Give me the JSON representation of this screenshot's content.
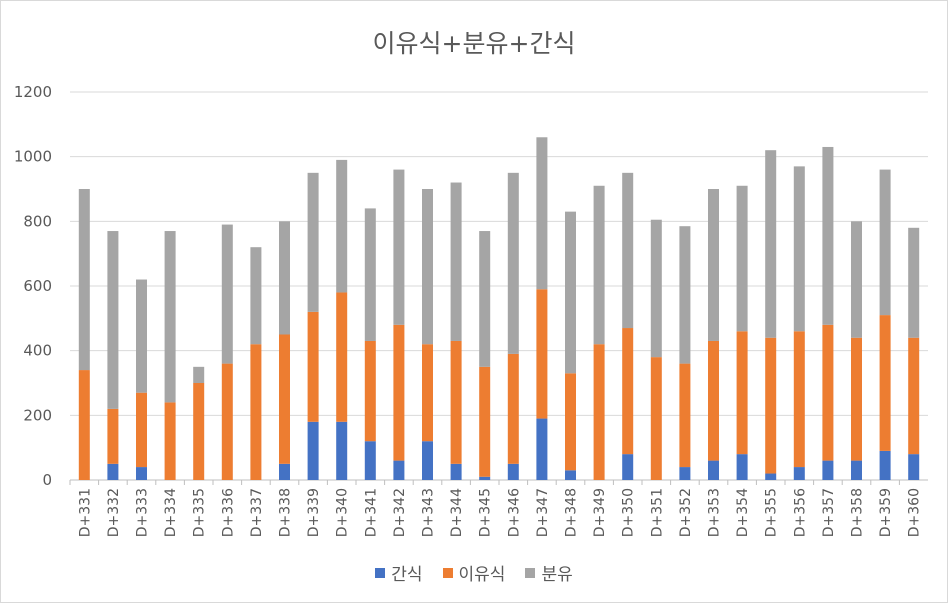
{
  "chart_data": {
    "type": "bar",
    "stacked": true,
    "title": "이유식+분유+간식",
    "xlabel": "",
    "ylabel": "",
    "ylim": [
      0,
      1200
    ],
    "yticks": [
      0,
      200,
      400,
      600,
      800,
      1000,
      1200
    ],
    "grid": true,
    "legend_position": "bottom",
    "categories": [
      "D+331",
      "D+332",
      "D+333",
      "D+334",
      "D+335",
      "D+336",
      "D+337",
      "D+338",
      "D+339",
      "D+340",
      "D+341",
      "D+342",
      "D+343",
      "D+344",
      "D+345",
      "D+346",
      "D+347",
      "D+348",
      "D+349",
      "D+350",
      "D+351",
      "D+352",
      "D+353",
      "D+354",
      "D+355",
      "D+356",
      "D+357",
      "D+358",
      "D+359",
      "D+360"
    ],
    "series": [
      {
        "name": "간식",
        "color": "#4472C4",
        "values": [
          0,
          50,
          40,
          0,
          0,
          0,
          0,
          50,
          180,
          180,
          120,
          60,
          120,
          50,
          10,
          50,
          190,
          30,
          0,
          80,
          0,
          40,
          60,
          80,
          20,
          40,
          60,
          60,
          90,
          80
        ]
      },
      {
        "name": "이유식",
        "color": "#ED7D31",
        "values": [
          340,
          170,
          230,
          240,
          300,
          360,
          420,
          400,
          340,
          400,
          310,
          420,
          300,
          380,
          340,
          340,
          400,
          300,
          420,
          390,
          380,
          320,
          370,
          380,
          420,
          420,
          420,
          380,
          420,
          360
        ]
      },
      {
        "name": "분유",
        "color": "#A5A5A5",
        "values": [
          560,
          550,
          350,
          530,
          50,
          430,
          300,
          350,
          430,
          410,
          410,
          480,
          480,
          490,
          420,
          560,
          470,
          500,
          490,
          480,
          425,
          425,
          470,
          450,
          580,
          510,
          550,
          360,
          450,
          340
        ]
      }
    ]
  }
}
